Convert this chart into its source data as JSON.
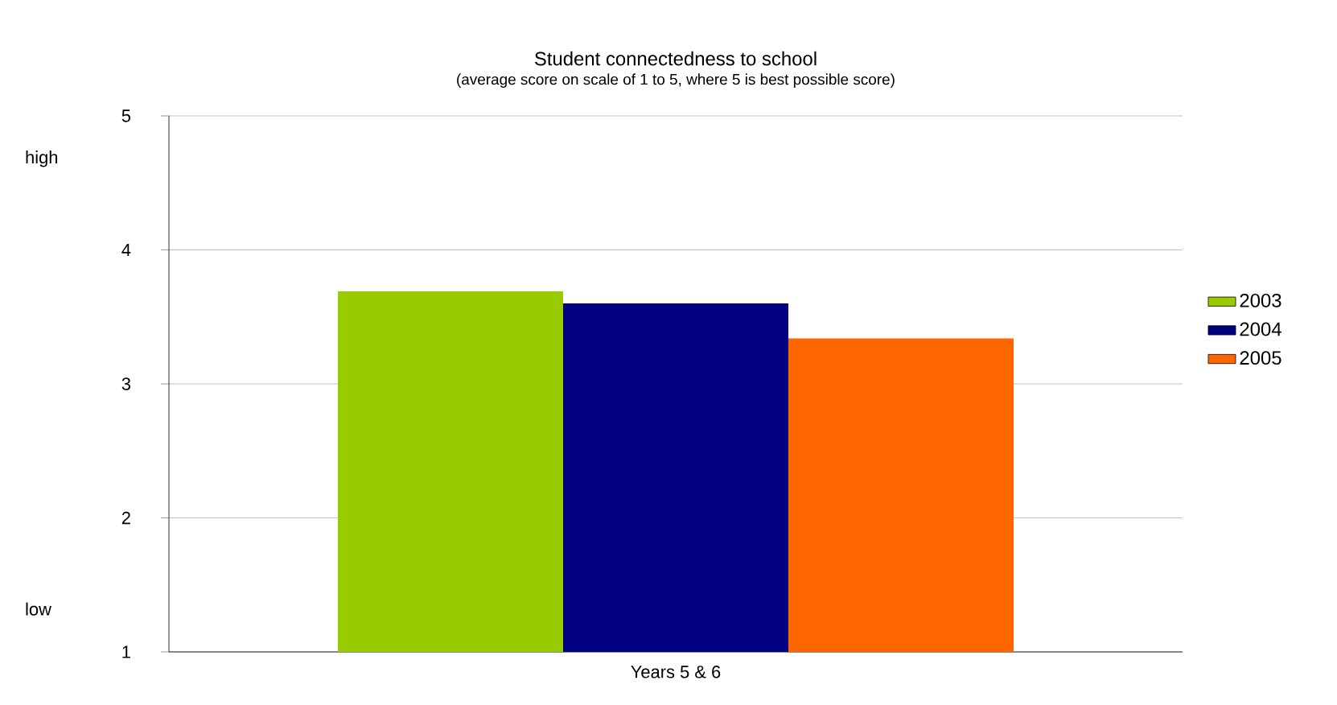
{
  "chart_data": {
    "type": "bar",
    "title": "Student connectedness to school",
    "subtitle": "(average score on scale of 1 to 5, where 5 is best possible score)",
    "categories": [
      "Years 5 & 6"
    ],
    "series": [
      {
        "name": "2003",
        "color": "#99cc00",
        "values": [
          3.69
        ]
      },
      {
        "name": "2004",
        "color": "#000080",
        "values": [
          3.6
        ]
      },
      {
        "name": "2005",
        "color": "#ff6600",
        "values": [
          3.34
        ]
      }
    ],
    "ylim": [
      1,
      5
    ],
    "yticks": [
      1,
      2,
      3,
      4,
      5
    ],
    "grid": "y",
    "legend": "right",
    "annotations": [
      "high",
      "low"
    ]
  }
}
